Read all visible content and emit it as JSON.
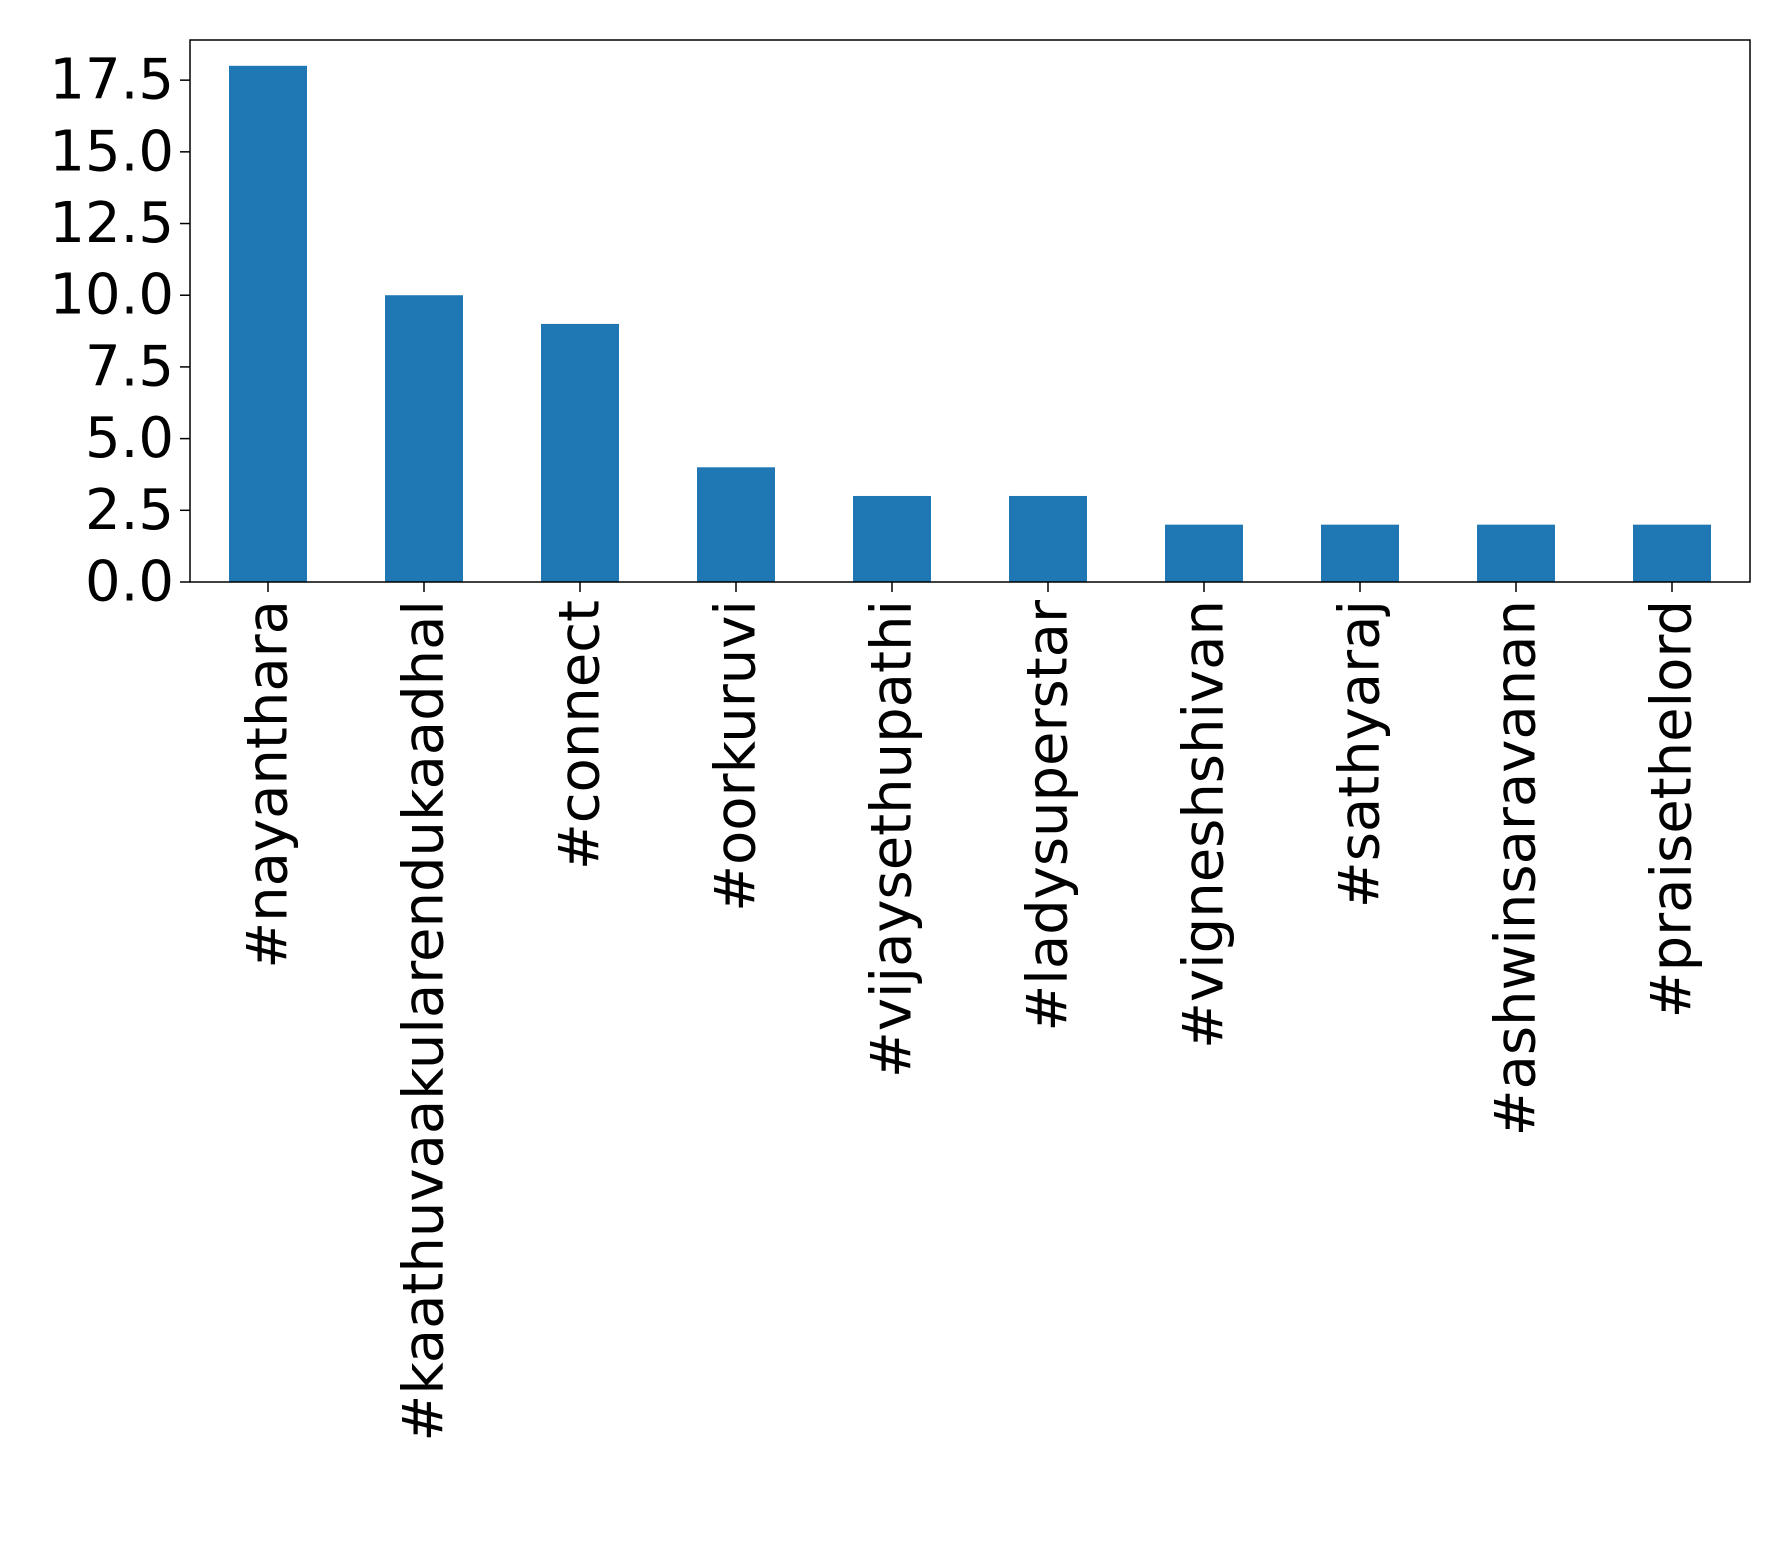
{
  "chart_data": {
    "type": "bar",
    "categories": [
      "#nayanthara",
      "#kaathuvaakularendukaadhal",
      "#connect",
      "#oorkuruvi",
      "#vijaysethupathi",
      "#ladysuperstar",
      "#vigneshshivan",
      "#sathyaraj",
      "#ashwinsaravanan",
      "#praisethelord"
    ],
    "values": [
      18,
      10,
      9,
      4,
      3,
      3,
      2,
      2,
      2,
      2
    ],
    "ylim": [
      0,
      18.9
    ],
    "yticks": [
      "0.0",
      "2.5",
      "5.0",
      "7.5",
      "10.0",
      "12.5",
      "15.0",
      "17.5"
    ],
    "grid": false,
    "title": "",
    "xlabel": "",
    "ylabel": "",
    "bar_color": "#1f77b4"
  }
}
